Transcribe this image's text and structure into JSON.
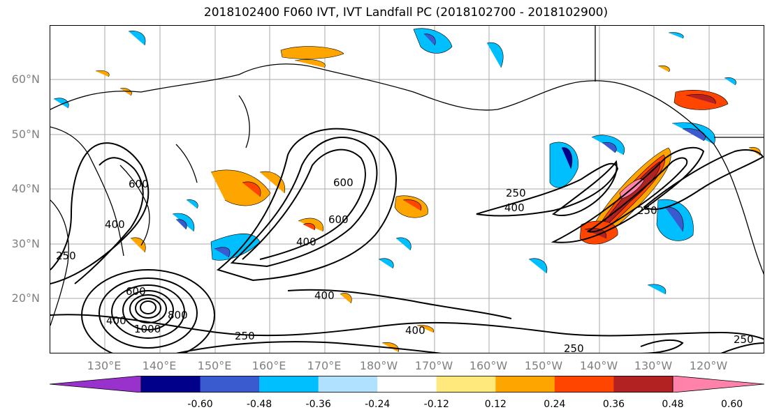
{
  "title": "2018102400 F060 IVT, IVT Landfall PC (2018102700 - 2018102900)",
  "lat_labels": [
    "60°N",
    "50°N",
    "40°N",
    "30°N",
    "20°N"
  ],
  "lon_labels": [
    "130°E",
    "140°E",
    "150°E",
    "160°E",
    "170°E",
    "180°W",
    "170°W",
    "160°W",
    "150°W",
    "140°W",
    "130°W",
    "120°W"
  ],
  "colorbar": {
    "colors": [
      "#9932CC",
      "#00008B",
      "#3A5BCF",
      "#00BFFF",
      "#B0E2FF",
      "#FFFFFF",
      "#FFE87C",
      "#FFA500",
      "#FF4500",
      "#B22222",
      "#FF82AB"
    ],
    "ticks": [
      "-0.60",
      "-0.48",
      "-0.36",
      "-0.24",
      "-0.12",
      "0.12",
      "0.24",
      "0.36",
      "0.48",
      "0.60"
    ]
  },
  "contour_labels": [
    "600",
    "400",
    "250",
    "600",
    "600",
    "400",
    "250",
    "400",
    "600",
    "1000",
    "800",
    "400",
    "250",
    "400",
    "250",
    "400",
    "250",
    "250"
  ],
  "colors": {
    "grid": "#a9a9a9",
    "coast": "#000000",
    "contour": "#000000",
    "axis_label": "#808080"
  }
}
